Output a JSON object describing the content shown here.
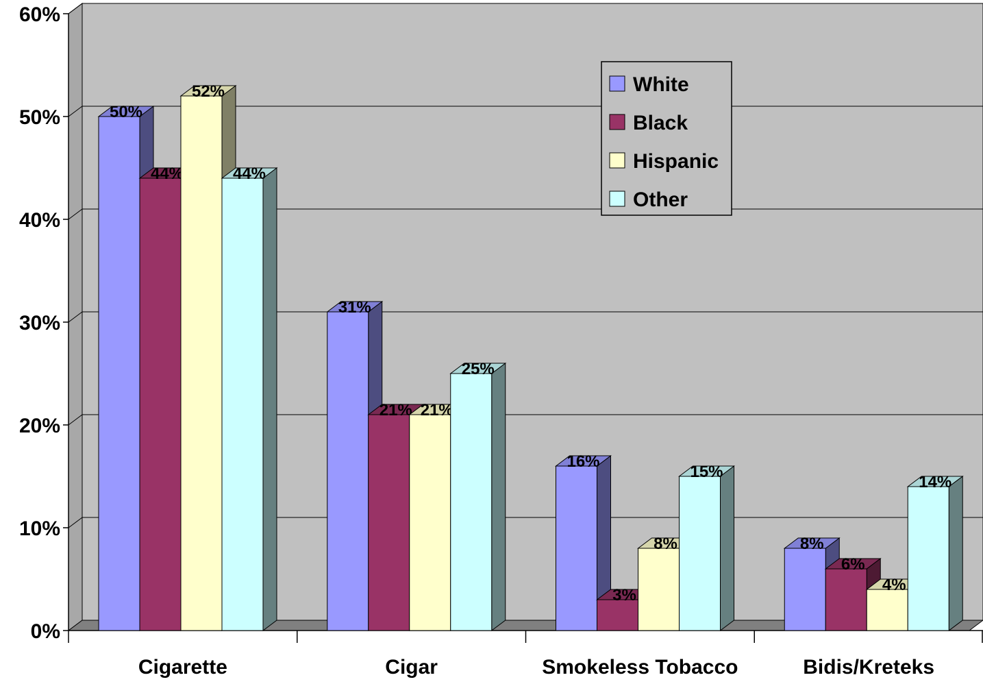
{
  "chart_data": {
    "type": "bar",
    "title": "",
    "xlabel": "",
    "ylabel": "",
    "ylim": [
      0,
      60
    ],
    "y_unit": "%",
    "y_ticks": [
      "0%",
      "10%",
      "20%",
      "30%",
      "40%",
      "50%",
      "60%"
    ],
    "grid": true,
    "three_d": true,
    "legend_position": "top-right",
    "categories": [
      "Cigarette",
      "Cigar",
      "Smokeless Tobacco",
      "Bidis/Kreteks"
    ],
    "series": [
      {
        "name": "White",
        "values": [
          50,
          31,
          16,
          8
        ],
        "labels": [
          "50%",
          "31%",
          "16%",
          "8%"
        ],
        "color": "#9999ff",
        "side_color": "#4d4d80",
        "top_color": "#8080d6"
      },
      {
        "name": "Black",
        "values": [
          44,
          21,
          3,
          6
        ],
        "labels": [
          "44%",
          "21%",
          "3%",
          "6%"
        ],
        "color": "#993366",
        "side_color": "#4d1a33",
        "top_color": "#7a2952"
      },
      {
        "name": "Hispanic",
        "values": [
          52,
          21,
          8,
          4
        ],
        "labels": [
          "52%",
          "21%",
          "8%",
          "4%"
        ],
        "color": "#ffffcc",
        "side_color": "#808066",
        "top_color": "#d6d6ab"
      },
      {
        "name": "Other",
        "values": [
          44,
          25,
          15,
          14
        ],
        "labels": [
          "44%",
          "25%",
          "15%",
          "14%"
        ],
        "color": "#ccffff",
        "side_color": "#668080",
        "top_color": "#abd6d6"
      }
    ],
    "colors": {
      "plot_background": "#c0c0c0",
      "wall_side": "#a8a8a8",
      "floor": "#808080",
      "gridline": "#000000"
    }
  }
}
